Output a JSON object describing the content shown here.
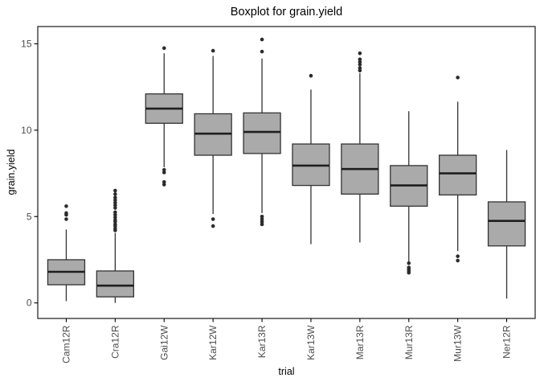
{
  "chart_data": {
    "type": "boxplot",
    "title": "Boxplot for grain.yield",
    "xlabel": "trial",
    "ylabel": "grain.yield",
    "ylim": [
      -0.9,
      16.0
    ],
    "yticks": [
      0,
      5,
      10,
      15
    ],
    "grid": false,
    "legend": false,
    "categories": [
      "Cam12R",
      "Cra12R",
      "Gai12W",
      "Kar12W",
      "Kar13R",
      "Kar13W",
      "Mar13R",
      "Mur13R",
      "Mur13W",
      "Ner12R"
    ],
    "boxes": [
      {
        "label": "Cam12R",
        "whisker_low": 0.1,
        "q1": 1.05,
        "median": 1.8,
        "q3": 2.5,
        "whisker_high": 4.25,
        "outliers": [
          4.85,
          5.1,
          5.2,
          5.6
        ]
      },
      {
        "label": "Cra12R",
        "whisker_low": 0.0,
        "q1": 0.35,
        "median": 1.0,
        "q3": 1.85,
        "whisker_high": 4.05,
        "outliers": [
          4.2,
          4.3,
          4.45,
          4.55,
          4.7,
          4.8,
          4.95,
          5.1,
          5.25,
          5.5,
          5.65,
          5.8,
          5.95,
          6.1,
          6.3,
          6.5
        ]
      },
      {
        "label": "Gai12W",
        "whisker_low": 7.85,
        "q1": 10.4,
        "median": 11.25,
        "q3": 12.1,
        "whisker_high": 14.45,
        "outliers": [
          14.75,
          7.7,
          7.55,
          7.0,
          6.85
        ]
      },
      {
        "label": "Kar12W",
        "whisker_low": 5.15,
        "q1": 8.55,
        "median": 9.8,
        "q3": 10.95,
        "whisker_high": 14.3,
        "outliers": [
          14.6,
          4.85,
          4.45
        ]
      },
      {
        "label": "Kar13R",
        "whisker_low": 5.2,
        "q1": 8.65,
        "median": 9.9,
        "q3": 11.0,
        "whisker_high": 14.15,
        "outliers": [
          15.25,
          14.55,
          5.0,
          4.85,
          4.7,
          4.55
        ]
      },
      {
        "label": "Kar13W",
        "whisker_low": 3.4,
        "q1": 6.8,
        "median": 7.95,
        "q3": 9.2,
        "whisker_high": 12.35,
        "outliers": [
          13.15
        ]
      },
      {
        "label": "Mar13R",
        "whisker_low": 3.5,
        "q1": 6.3,
        "median": 7.75,
        "q3": 9.2,
        "whisker_high": 13.3,
        "outliers": [
          14.45,
          14.1,
          13.95,
          13.8,
          13.6,
          13.45
        ]
      },
      {
        "label": "Mur13R",
        "whisker_low": 2.4,
        "q1": 5.6,
        "median": 6.8,
        "q3": 7.95,
        "whisker_high": 11.1,
        "outliers": [
          2.3,
          2.05,
          1.95,
          1.85,
          1.75
        ]
      },
      {
        "label": "Mur13W",
        "whisker_low": 3.0,
        "q1": 6.25,
        "median": 7.5,
        "q3": 8.55,
        "whisker_high": 11.65,
        "outliers": [
          13.05,
          2.7,
          2.45
        ]
      },
      {
        "label": "Ner12R",
        "whisker_low": 0.25,
        "q1": 3.3,
        "median": 4.75,
        "q3": 5.85,
        "whisker_high": 8.85,
        "outliers": []
      }
    ],
    "colors": {
      "background": "#ffffff",
      "panel_border": "#1a1a1a",
      "box_fill": "#aaaaaa",
      "box_stroke": "#333333",
      "median": "#1f1f1f",
      "outlier": "#2b2b2b",
      "tick_label": "#4d4d4d",
      "axis_title": "#000000",
      "tick_mark": "#000000"
    }
  }
}
